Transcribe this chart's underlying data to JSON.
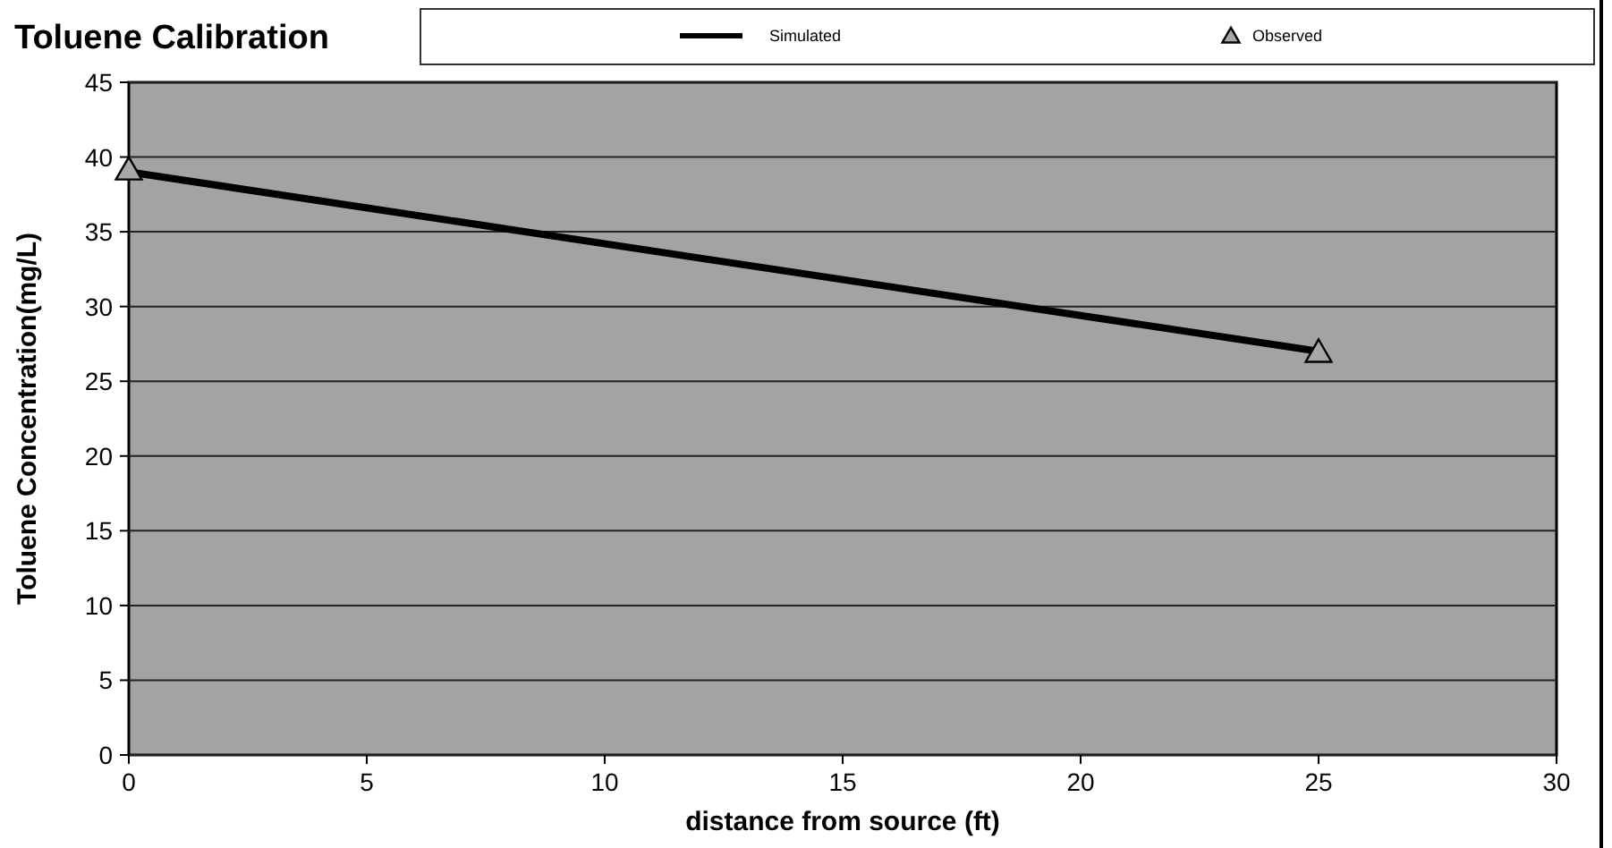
{
  "chart_data": {
    "type": "line",
    "title": "Toluene Calibration",
    "xlabel": "distance from source (ft)",
    "ylabel": "Toluene Concentration(mg/L)",
    "xlim": [
      0,
      30
    ],
    "xticks": [
      0,
      5,
      10,
      15,
      20,
      25,
      30
    ],
    "ylim": [
      0,
      45
    ],
    "yticks": [
      0,
      5,
      10,
      15,
      20,
      25,
      30,
      35,
      40,
      45
    ],
    "grid": "y",
    "legend": "top",
    "x": [
      0,
      25
    ],
    "series": [
      {
        "name": "Simulated",
        "type": "line",
        "color": "#000000",
        "values": [
          39,
          27
        ],
        "marker": "none"
      },
      {
        "name": "Observed",
        "type": "scatter",
        "color": "#000000",
        "values": [
          39,
          26.8
        ],
        "marker": "triangle"
      }
    ]
  }
}
